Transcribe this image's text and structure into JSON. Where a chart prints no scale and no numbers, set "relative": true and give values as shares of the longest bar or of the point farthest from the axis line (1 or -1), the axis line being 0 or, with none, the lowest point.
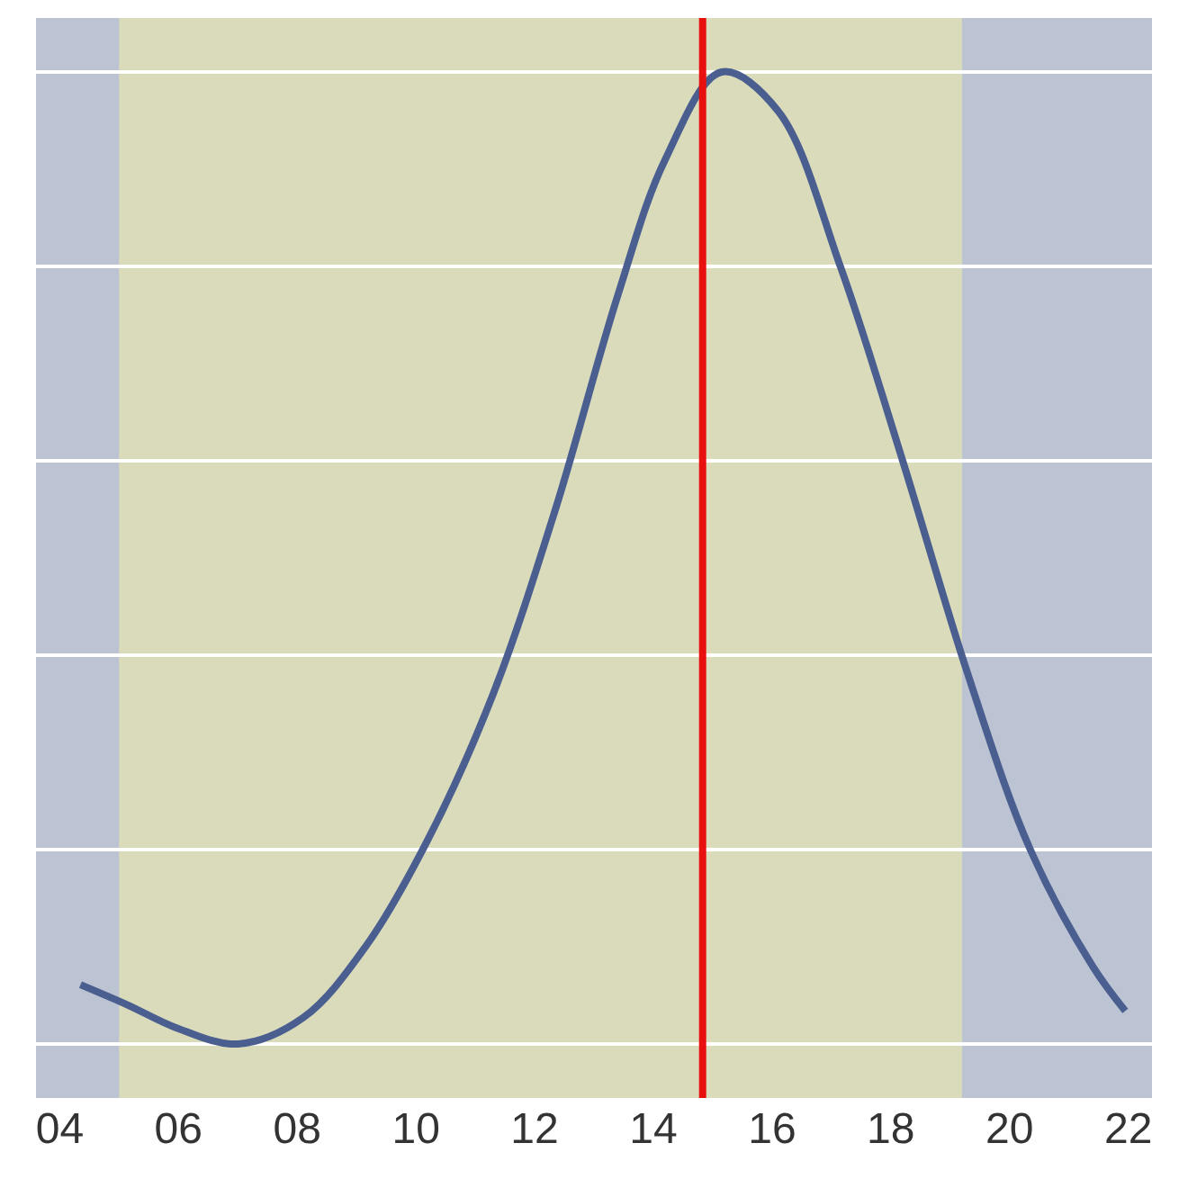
{
  "chart_data": {
    "type": "line",
    "relative": true,
    "x": [
      4.35,
      5.15,
      5.95,
      7.0,
      8.1,
      9.15,
      10.2,
      11.3,
      12.35,
      13.4,
      14.2,
      15.15,
      16.1,
      17.15,
      18.2,
      19.3,
      20.35,
      21.4,
      21.95
    ],
    "series": [
      {
        "color": "#4a5f8f",
        "values": [
          0.061,
          0.04,
          0.017,
          0,
          0.027,
          0.1,
          0.21,
          0.36,
          0.55,
          0.77,
          0.91,
          1,
          0.96,
          0.8,
          0.6,
          0.38,
          0.2,
          0.08,
          0.034
        ]
      }
    ],
    "xlim": [
      3.6,
      22.4
    ],
    "xticks": [
      {
        "value": 4,
        "label": "04"
      },
      {
        "value": 6,
        "label": "06"
      },
      {
        "value": 8,
        "label": "08"
      },
      {
        "value": 10,
        "label": "10"
      },
      {
        "value": 12,
        "label": "12"
      },
      {
        "value": 14,
        "label": "14"
      },
      {
        "value": 16,
        "label": "16"
      },
      {
        "value": 18,
        "label": "18"
      },
      {
        "value": 20,
        "label": "20"
      },
      {
        "value": 22,
        "label": "22"
      }
    ],
    "bands": [
      {
        "axis": "x",
        "from": 5.0,
        "to": 19.2,
        "color": "#d9dbbb"
      }
    ],
    "ref_lines": [
      {
        "axis": "x",
        "value": 14.83,
        "color": "#e8100f"
      }
    ],
    "grid": "y",
    "legend": false,
    "marker": "none",
    "line_style": "solid"
  }
}
